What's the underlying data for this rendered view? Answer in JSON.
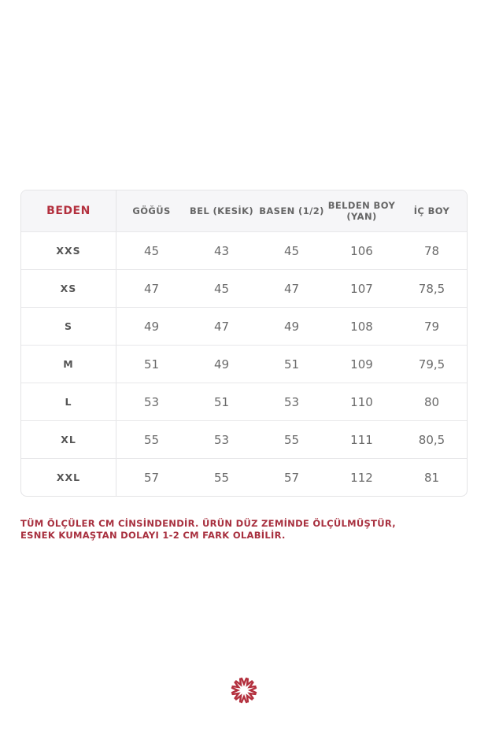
{
  "table": {
    "headers": [
      "BEDEN",
      "GÖĞÜS",
      "BEL (KESİK)",
      "BASEN (1/2)",
      "BELDEN BOY (YAN)",
      "İÇ BOY"
    ],
    "rows": [
      [
        "XXS",
        "45",
        "43",
        "45",
        "106",
        "78"
      ],
      [
        "XS",
        "47",
        "45",
        "47",
        "107",
        "78,5"
      ],
      [
        "S",
        "49",
        "47",
        "49",
        "108",
        "79"
      ],
      [
        "M",
        "51",
        "49",
        "51",
        "109",
        "79,5"
      ],
      [
        "L",
        "53",
        "51",
        "53",
        "110",
        "80"
      ],
      [
        "XL",
        "55",
        "53",
        "55",
        "111",
        "80,5"
      ],
      [
        "XXL",
        "57",
        "55",
        "57",
        "112",
        "81"
      ]
    ]
  },
  "note": {
    "line1": "TÜM ÖLÇÜLER CM CİNSİNDENDİR. ÜRÜN DÜZ ZEMİNDE ÖLÇÜLMÜŞTÜR,",
    "line2": "ESNEK KUMAŞTAN DOLAYI 1-2 CM FARK OLABİLİR."
  },
  "logo": {
    "icon": "starburst-logo-icon"
  },
  "colors": {
    "accent": "#b3303e",
    "header_bg": "#f6f6f8",
    "text": "#6a6a6a"
  }
}
